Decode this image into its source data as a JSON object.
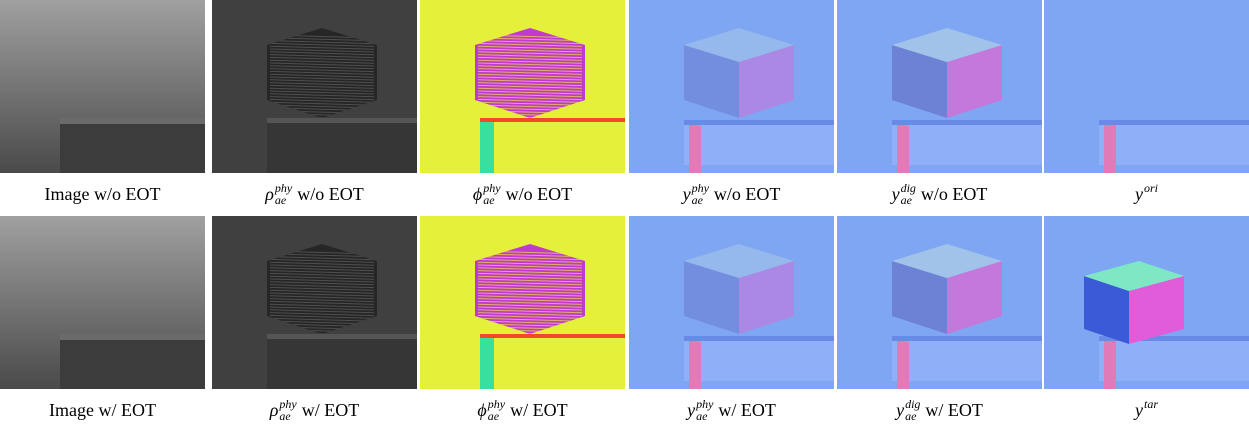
{
  "figure": {
    "rows": [
      {
        "panels": [
          {
            "caption": {
              "text": "Image w/o EOT"
            }
          },
          {
            "caption": {
              "symbol": "ρ",
              "sup": "phy",
              "sub": "ae",
              "text": "w/o EOT"
            }
          },
          {
            "caption": {
              "symbol": "ϕ",
              "sup": "phy",
              "sub": "ae",
              "text": "w/o EOT"
            }
          },
          {
            "caption": {
              "symbol": "y",
              "sup": "phy",
              "sub": "ae",
              "text": "w/o EOT"
            }
          },
          {
            "caption": {
              "symbol": "y",
              "sup": "dig",
              "sub": "ae",
              "text": "w/o EOT"
            }
          },
          {
            "caption": {
              "symbol": "y",
              "sup": "ori"
            }
          }
        ]
      },
      {
        "panels": [
          {
            "caption": {
              "text": "Image w/ EOT"
            }
          },
          {
            "caption": {
              "symbol": "ρ",
              "sup": "phy",
              "sub": "ae",
              "text": "w/ EOT"
            }
          },
          {
            "caption": {
              "symbol": "ϕ",
              "sup": "phy",
              "sub": "ae",
              "text": "w/ EOT"
            }
          },
          {
            "caption": {
              "symbol": "y",
              "sup": "phy",
              "sub": "ae",
              "text": "w/ EOT"
            }
          },
          {
            "caption": {
              "symbol": "y",
              "sup": "dig",
              "sub": "ae",
              "text": "w/ EOT"
            }
          },
          {
            "caption": {
              "symbol": "y",
              "sup": "tar"
            }
          }
        ]
      }
    ]
  }
}
